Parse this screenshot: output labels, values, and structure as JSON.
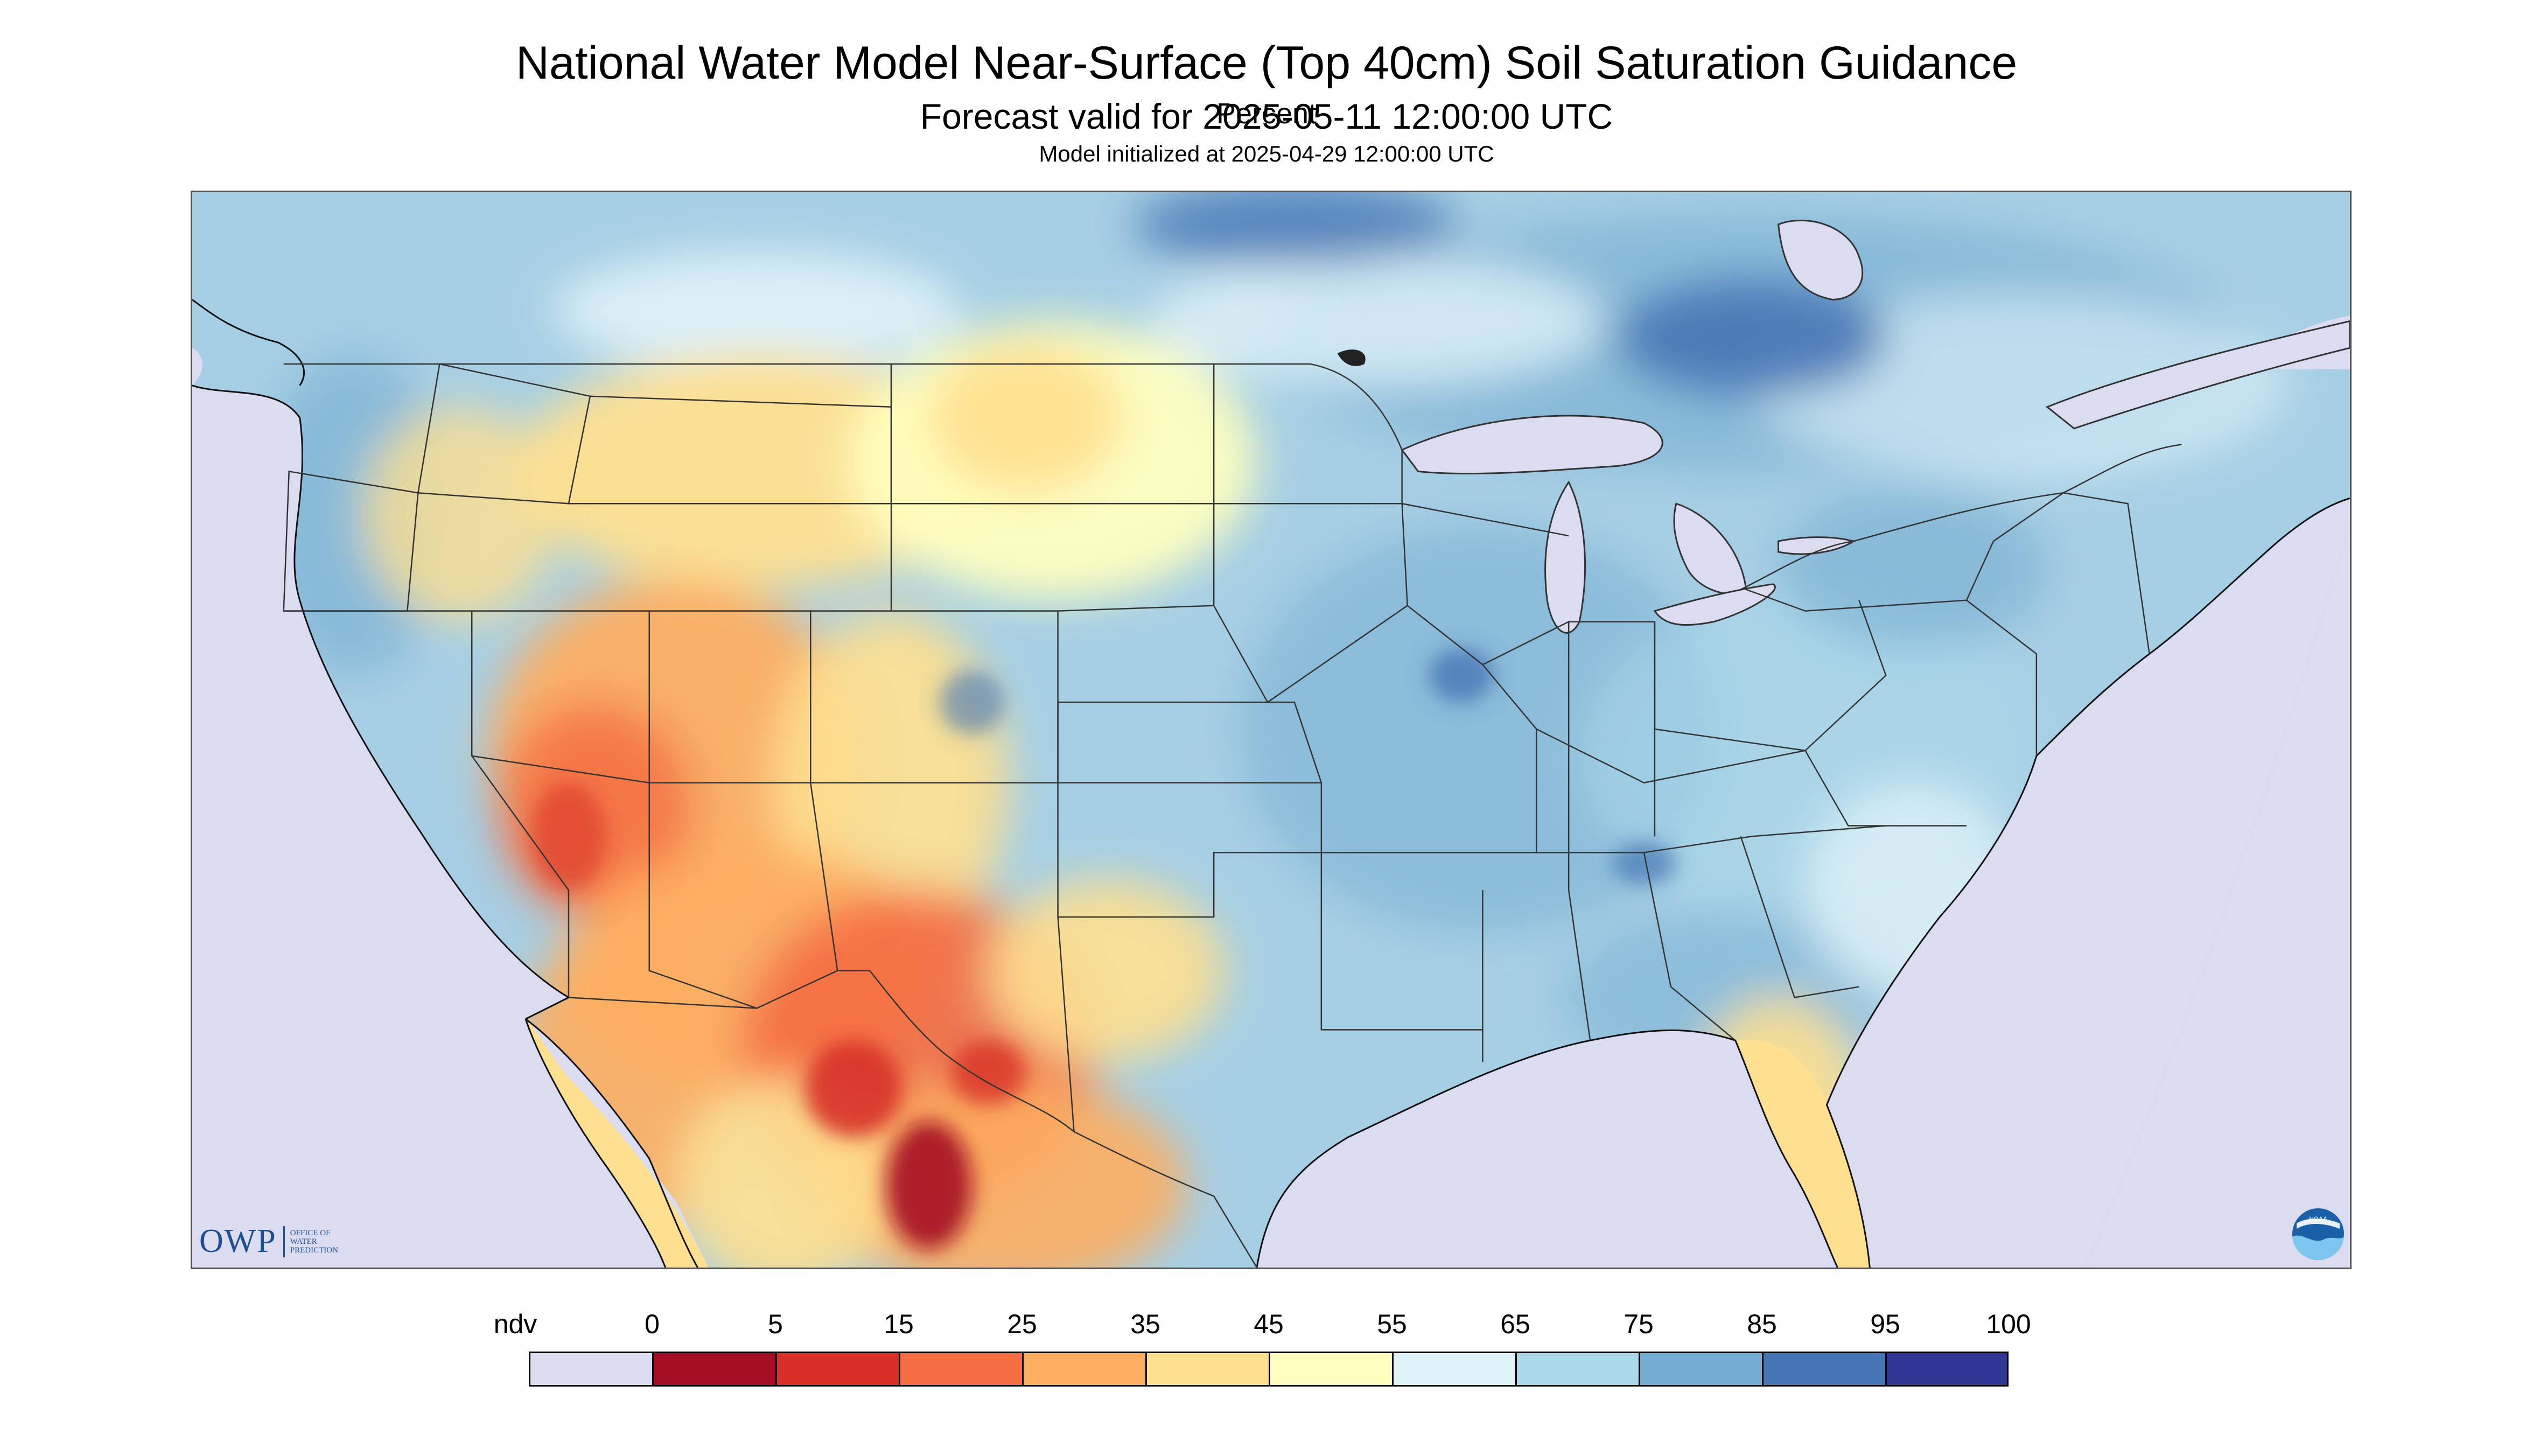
{
  "header": {
    "title": "National Water Model Near-Surface (Top 40cm) Soil Saturation Guidance",
    "valid": "Forecast valid for 2025-05-11 12:00:00 UTC",
    "initialized": "Model initialized at 2025-04-29 12:00:00 UTC"
  },
  "branding": {
    "owp_mark": "OWP",
    "owp_lines": [
      "OFFICE OF",
      "WATER",
      "PREDICTION"
    ],
    "noaa_mark": "NOAA"
  },
  "legend": {
    "ticks": [
      "ndv",
      "0",
      "5",
      "15",
      "25",
      "35",
      "45",
      "55",
      "65",
      "75",
      "85",
      "95",
      "100"
    ],
    "colors": [
      "#dcdcf0",
      "#a50f26",
      "#d73027",
      "#f46d43",
      "#fdae61",
      "#fee090",
      "#ffffbf",
      "#e0f3f8",
      "#abd9e9",
      "#74add1",
      "#4575b4",
      "#313695"
    ],
    "unit": "Percent"
  },
  "map": {
    "nodata_color": "#dcdcf0",
    "water_color": "#dcdcf0",
    "land_base_color": "#a7cfe4",
    "boundary_color": "#333333"
  }
}
